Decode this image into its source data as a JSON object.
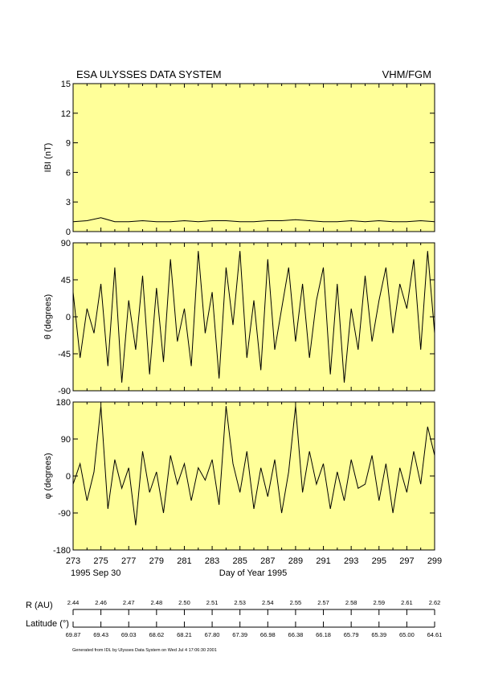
{
  "header": {
    "title": "ESA ULYSSES DATA SYSTEM",
    "instrument": "VHM/FGM"
  },
  "footer": {
    "date_label": "1995 Sep 30",
    "xlabel": "Day of Year 1995",
    "generated": "Generated from IDL by Ulysses Data System on Wed Jul  4 17:06:30 2001"
  },
  "colors": {
    "panel_bg": "#ffff99",
    "trace": "#000000",
    "frame": "#000000"
  },
  "chart_data": [
    {
      "type": "line",
      "ylabel": "IBI (nT)",
      "xlim": [
        273,
        299
      ],
      "ylim": [
        0,
        15
      ],
      "x_ticks": [
        "273",
        "275",
        "277",
        "279",
        "281",
        "283",
        "285",
        "287",
        "289",
        "291",
        "293",
        "295",
        "297",
        "299"
      ],
      "y_ticks": [
        "0",
        "3",
        "6",
        "9",
        "12",
        "15"
      ],
      "series": [
        {
          "x": [
            273,
            274,
            275,
            276,
            277,
            278,
            279,
            280,
            281,
            282,
            283,
            284,
            285,
            286,
            287,
            288,
            289,
            290,
            291,
            292,
            293,
            294,
            295,
            296,
            297,
            298,
            299
          ],
          "values": [
            1.0,
            1.1,
            1.4,
            1.0,
            1.0,
            1.1,
            1.0,
            1.0,
            1.1,
            1.0,
            1.1,
            1.1,
            1.0,
            1.0,
            1.1,
            1.1,
            1.2,
            1.1,
            1.0,
            1.0,
            1.1,
            1.0,
            1.1,
            1.0,
            1.0,
            1.1,
            1.0
          ]
        }
      ]
    },
    {
      "type": "line",
      "ylabel": "θ (degrees)",
      "xlim": [
        273,
        299
      ],
      "ylim": [
        -90,
        90
      ],
      "x_ticks": [
        "273",
        "275",
        "277",
        "279",
        "281",
        "283",
        "285",
        "287",
        "289",
        "291",
        "293",
        "295",
        "297",
        "299"
      ],
      "y_ticks": [
        "-90",
        "-45",
        "0",
        "45",
        "90"
      ],
      "series": [
        {
          "x": [
            273,
            273.5,
            274,
            274.5,
            275,
            275.5,
            276,
            276.5,
            277,
            277.5,
            278,
            278.5,
            279,
            279.5,
            280,
            280.5,
            281,
            281.5,
            282,
            282.5,
            283,
            283.5,
            284,
            284.5,
            285,
            285.5,
            286,
            286.5,
            287,
            287.5,
            288,
            288.5,
            289,
            289.5,
            290,
            290.5,
            291,
            291.5,
            292,
            292.5,
            293,
            293.5,
            294,
            294.5,
            295,
            295.5,
            296,
            296.5,
            297,
            297.5,
            298,
            298.5,
            299
          ],
          "values": [
            30,
            -50,
            10,
            -20,
            40,
            -60,
            60,
            -80,
            20,
            -40,
            50,
            -70,
            35,
            -55,
            70,
            -30,
            10,
            -60,
            80,
            -20,
            30,
            -75,
            60,
            -10,
            80,
            -50,
            20,
            -65,
            70,
            -40,
            10,
            60,
            -30,
            40,
            -50,
            20,
            60,
            -70,
            40,
            -80,
            10,
            -40,
            50,
            -30,
            20,
            60,
            -20,
            40,
            10,
            70,
            -40,
            80,
            -20
          ]
        }
      ]
    },
    {
      "type": "line",
      "ylabel": "φ (degrees)",
      "xlim": [
        273,
        299
      ],
      "ylim": [
        -180,
        180
      ],
      "x_ticks": [
        "273",
        "275",
        "277",
        "279",
        "281",
        "283",
        "285",
        "287",
        "289",
        "291",
        "293",
        "295",
        "297",
        "299"
      ],
      "y_ticks": [
        "-180",
        "-90",
        "0",
        "90",
        "180"
      ],
      "series": [
        {
          "x": [
            273,
            273.5,
            274,
            274.5,
            275,
            275.5,
            276,
            276.5,
            277,
            277.5,
            278,
            278.5,
            279,
            279.5,
            280,
            280.5,
            281,
            281.5,
            282,
            282.5,
            283,
            283.5,
            284,
            284.5,
            285,
            285.5,
            286,
            286.5,
            287,
            287.5,
            288,
            288.5,
            289,
            289.5,
            290,
            290.5,
            291,
            291.5,
            292,
            292.5,
            293,
            293.5,
            294,
            294.5,
            295,
            295.5,
            296,
            296.5,
            297,
            297.5,
            298,
            298.5,
            299
          ],
          "values": [
            -20,
            30,
            -60,
            10,
            170,
            -80,
            40,
            -30,
            20,
            -120,
            60,
            -40,
            10,
            -90,
            50,
            -20,
            30,
            -60,
            20,
            -10,
            40,
            -70,
            170,
            30,
            -40,
            60,
            -80,
            20,
            -50,
            40,
            -90,
            10,
            170,
            -40,
            60,
            -20,
            30,
            -80,
            10,
            -60,
            40,
            -30,
            -20,
            50,
            -60,
            30,
            -90,
            20,
            -40,
            60,
            -20,
            120,
            50
          ]
        }
      ]
    }
  ],
  "ephemeris": {
    "r_label": "R (AU)",
    "r_values": [
      "2.44",
      "2.46",
      "2.47",
      "2.48",
      "2.50",
      "2.51",
      "2.53",
      "2.54",
      "2.55",
      "2.57",
      "2.58",
      "2.59",
      "2.61",
      "2.62"
    ],
    "lat_label": "Latitude (°)",
    "lat_values": [
      "69.87",
      "69.43",
      "69.03",
      "68.62",
      "68.21",
      "67.80",
      "67.39",
      "66.98",
      "66.38",
      "66.18",
      "65.79",
      "65.39",
      "65.00",
      "64.61"
    ]
  }
}
